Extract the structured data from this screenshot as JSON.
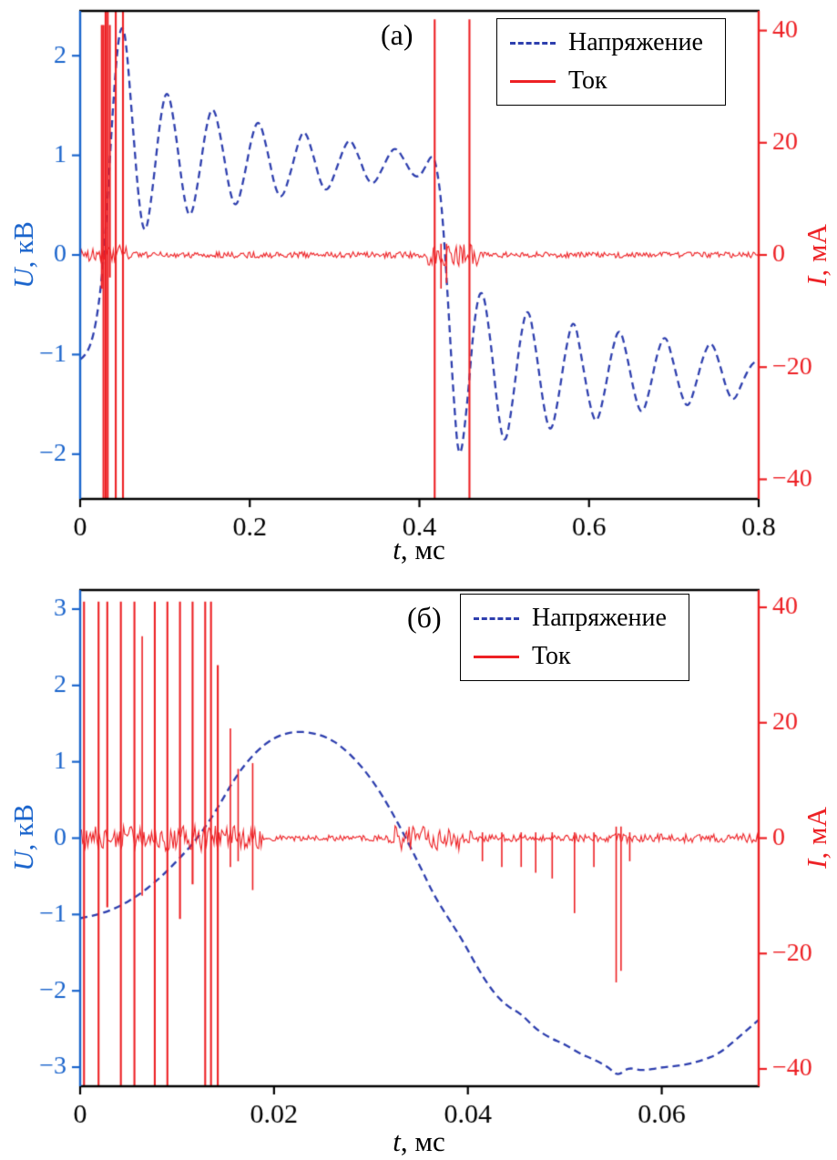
{
  "figure": {
    "background": "#ffffff"
  },
  "chart_data": [
    {
      "id": "a",
      "type": "line",
      "panel_label": "(а)",
      "x_axis": {
        "label_symbol": "t",
        "label_rest": ", мс",
        "color": "#000000",
        "lim": [
          0,
          0.8
        ],
        "tick_values": [
          0,
          0.2,
          0.4,
          0.6,
          0.8
        ],
        "tick_labels": [
          "0",
          "0.2",
          "0.4",
          "0.6",
          "0.8"
        ]
      },
      "left_axis": {
        "label_symbol": "U",
        "label_rest": ", кВ",
        "color": "#1a64cc",
        "lim": [
          -2.45,
          2.45
        ],
        "tick_values": [
          -2,
          -1,
          0,
          1,
          2
        ],
        "tick_labels": [
          "−2",
          "−1",
          "0",
          "1",
          "2"
        ]
      },
      "right_axis": {
        "label_symbol": "I",
        "label_rest": ", мА",
        "color": "#ed2024",
        "lim": [
          -43.5,
          43.5
        ],
        "tick_values": [
          -40,
          -20,
          0,
          20,
          40
        ],
        "tick_labels": [
          "−40",
          "−20",
          "0",
          "20",
          "40"
        ]
      },
      "legend": [
        {
          "label": "Напряжение",
          "line": "dashed",
          "color": "#2e3fae"
        },
        {
          "label": "Ток",
          "line": "solid",
          "color": "#ed2024"
        }
      ],
      "series": [
        {
          "name": "Напряжение",
          "axis": "left",
          "style": "dashed",
          "color": "#2e3fae",
          "points": [
            [
              0,
              -1.05
            ],
            [
              0.008,
              -1.0
            ],
            [
              0.016,
              -0.8
            ],
            [
              0.022,
              -0.5
            ],
            [
              0.027,
              -0.1
            ],
            [
              0.032,
              0.5
            ],
            [
              0.038,
              1.4
            ],
            [
              0.044,
              2.1
            ],
            [
              0.049,
              2.32
            ],
            [
              0.054,
              2.18
            ],
            [
              0.062,
              1.3
            ],
            [
              0.07,
              0.45
            ],
            [
              0.077,
              0.17
            ],
            [
              0.085,
              0.62
            ],
            [
              0.095,
              1.42
            ],
            [
              0.103,
              1.7
            ],
            [
              0.112,
              1.28
            ],
            [
              0.122,
              0.58
            ],
            [
              0.13,
              0.33
            ],
            [
              0.139,
              0.72
            ],
            [
              0.149,
              1.32
            ],
            [
              0.157,
              1.52
            ],
            [
              0.166,
              1.18
            ],
            [
              0.176,
              0.64
            ],
            [
              0.184,
              0.45
            ],
            [
              0.193,
              0.76
            ],
            [
              0.203,
              1.22
            ],
            [
              0.211,
              1.38
            ],
            [
              0.221,
              1.04
            ],
            [
              0.23,
              0.66
            ],
            [
              0.238,
              0.55
            ],
            [
              0.248,
              0.82
            ],
            [
              0.258,
              1.16
            ],
            [
              0.265,
              1.27
            ],
            [
              0.275,
              1.0
            ],
            [
              0.284,
              0.7
            ],
            [
              0.292,
              0.63
            ],
            [
              0.302,
              0.86
            ],
            [
              0.312,
              1.1
            ],
            [
              0.319,
              1.17
            ],
            [
              0.329,
              0.98
            ],
            [
              0.338,
              0.76
            ],
            [
              0.346,
              0.7
            ],
            [
              0.356,
              0.86
            ],
            [
              0.366,
              1.04
            ],
            [
              0.373,
              1.08
            ],
            [
              0.383,
              0.94
            ],
            [
              0.392,
              0.8
            ],
            [
              0.4,
              0.78
            ],
            [
              0.408,
              0.9
            ],
            [
              0.414,
              1.0
            ],
            [
              0.419,
              0.95
            ],
            [
              0.426,
              0.55
            ],
            [
              0.433,
              -0.35
            ],
            [
              0.44,
              -1.4
            ],
            [
              0.447,
              -2.15
            ],
            [
              0.456,
              -1.55
            ],
            [
              0.465,
              -0.6
            ],
            [
              0.474,
              -0.28
            ],
            [
              0.484,
              -0.85
            ],
            [
              0.493,
              -1.62
            ],
            [
              0.501,
              -1.95
            ],
            [
              0.51,
              -1.48
            ],
            [
              0.519,
              -0.82
            ],
            [
              0.528,
              -0.48
            ],
            [
              0.537,
              -0.92
            ],
            [
              0.547,
              -1.56
            ],
            [
              0.555,
              -1.82
            ],
            [
              0.564,
              -1.44
            ],
            [
              0.573,
              -0.92
            ],
            [
              0.582,
              -0.6
            ],
            [
              0.591,
              -1.02
            ],
            [
              0.601,
              -1.52
            ],
            [
              0.609,
              -1.72
            ],
            [
              0.618,
              -1.4
            ],
            [
              0.627,
              -0.96
            ],
            [
              0.636,
              -0.7
            ],
            [
              0.645,
              -1.02
            ],
            [
              0.655,
              -1.46
            ],
            [
              0.663,
              -1.62
            ],
            [
              0.672,
              -1.34
            ],
            [
              0.681,
              -0.96
            ],
            [
              0.69,
              -0.78
            ],
            [
              0.699,
              -1.06
            ],
            [
              0.709,
              -1.42
            ],
            [
              0.717,
              -1.55
            ],
            [
              0.726,
              -1.3
            ],
            [
              0.735,
              -1.0
            ],
            [
              0.744,
              -0.85
            ],
            [
              0.753,
              -1.06
            ],
            [
              0.763,
              -1.38
            ],
            [
              0.771,
              -1.48
            ],
            [
              0.781,
              -1.27
            ],
            [
              0.791,
              -1.1
            ],
            [
              0.8,
              -1.05
            ]
          ]
        },
        {
          "name": "Ток",
          "axis": "right",
          "style": "solid",
          "color": "#ed2024",
          "baseline": 0,
          "noise": [
            {
              "t0": 0,
              "t1": 0.024,
              "amp": 1.2
            },
            {
              "t0": 0.024,
              "t1": 0.058,
              "amp": 2.0
            },
            {
              "t0": 0.058,
              "t1": 0.41,
              "amp": 0.55
            },
            {
              "t0": 0.41,
              "t1": 0.47,
              "amp": 2.0
            },
            {
              "t0": 0.47,
              "t1": 0.8,
              "amp": 0.5
            }
          ],
          "spikes": [
            {
              "t": 0.0255,
              "lo": -6,
              "hi": 41
            },
            {
              "t": 0.0275,
              "lo": -45,
              "hi": 41
            },
            {
              "t": 0.03,
              "lo": -45,
              "hi": 45
            },
            {
              "t": 0.0325,
              "lo": -45,
              "hi": 45
            },
            {
              "t": 0.035,
              "lo": -4,
              "hi": 41
            },
            {
              "t": 0.042,
              "lo": -45,
              "hi": 45
            },
            {
              "t": 0.0505,
              "lo": -45,
              "hi": 45
            },
            {
              "t": 0.418,
              "lo": -45,
              "hi": 42
            },
            {
              "t": 0.4255,
              "lo": -6,
              "hi": 2
            },
            {
              "t": 0.432,
              "lo": -5,
              "hi": 2
            },
            {
              "t": 0.459,
              "lo": -45,
              "hi": 42
            }
          ]
        }
      ]
    },
    {
      "id": "b",
      "type": "line",
      "panel_label": "(б)",
      "x_axis": {
        "label_symbol": "t",
        "label_rest": ", мс",
        "color": "#000000",
        "lim": [
          0,
          0.07
        ],
        "tick_values": [
          0,
          0.02,
          0.04,
          0.06
        ],
        "tick_labels": [
          "0",
          "0.02",
          "0.04",
          "0.06"
        ]
      },
      "left_axis": {
        "label_symbol": "U",
        "label_rest": ", кВ",
        "color": "#1a64cc",
        "lim": [
          -3.25,
          3.25
        ],
        "tick_values": [
          -3,
          -2,
          -1,
          0,
          1,
          2,
          3
        ],
        "tick_labels": [
          "−3",
          "−2",
          "−1",
          "0",
          "1",
          "2",
          "3"
        ]
      },
      "right_axis": {
        "label_symbol": "I",
        "label_rest": ", мА",
        "color": "#ed2024",
        "lim": [
          -43,
          43
        ],
        "tick_values": [
          -40,
          -20,
          0,
          20,
          40
        ],
        "tick_labels": [
          "−40",
          "−20",
          "0",
          "20",
          "40"
        ]
      },
      "legend": [
        {
          "label": "Напряжение",
          "line": "dashed",
          "color": "#2e3fae"
        },
        {
          "label": "Ток",
          "line": "solid",
          "color": "#ed2024"
        }
      ],
      "series": [
        {
          "name": "Напряжение",
          "axis": "left",
          "style": "dashed",
          "color": "#2e3fae",
          "points": [
            [
              0,
              -1.05
            ],
            [
              0.002,
              -1.0
            ],
            [
              0.004,
              -0.9
            ],
            [
              0.006,
              -0.75
            ],
            [
              0.008,
              -0.55
            ],
            [
              0.01,
              -0.3
            ],
            [
              0.012,
              -0.02
            ],
            [
              0.014,
              0.35
            ],
            [
              0.016,
              0.8
            ],
            [
              0.018,
              1.12
            ],
            [
              0.02,
              1.32
            ],
            [
              0.022,
              1.4
            ],
            [
              0.024,
              1.38
            ],
            [
              0.0255,
              1.32
            ],
            [
              0.027,
              1.2
            ],
            [
              0.029,
              0.95
            ],
            [
              0.031,
              0.6
            ],
            [
              0.033,
              0.15
            ],
            [
              0.035,
              -0.35
            ],
            [
              0.0365,
              -0.75
            ],
            [
              0.038,
              -1.05
            ],
            [
              0.0395,
              -1.35
            ],
            [
              0.041,
              -1.7
            ],
            [
              0.0425,
              -2.0
            ],
            [
              0.044,
              -2.2
            ],
            [
              0.0455,
              -2.3
            ],
            [
              0.047,
              -2.5
            ],
            [
              0.0485,
              -2.62
            ],
            [
              0.05,
              -2.7
            ],
            [
              0.0515,
              -2.82
            ],
            [
              0.053,
              -2.9
            ],
            [
              0.0545,
              -3.0
            ],
            [
              0.0555,
              -3.12
            ],
            [
              0.0565,
              -3.0
            ],
            [
              0.058,
              -3.05
            ],
            [
              0.06,
              -3.0
            ],
            [
              0.062,
              -2.98
            ],
            [
              0.064,
              -2.92
            ],
            [
              0.066,
              -2.82
            ],
            [
              0.068,
              -2.6
            ],
            [
              0.07,
              -2.38
            ]
          ]
        },
        {
          "name": "Ток",
          "axis": "right",
          "style": "solid",
          "color": "#ed2024",
          "baseline": 0,
          "noise": [
            {
              "t0": 0,
              "t1": 0.019,
              "amp": 2.2
            },
            {
              "t0": 0.019,
              "t1": 0.0315,
              "amp": 0.5
            },
            {
              "t0": 0.0315,
              "t1": 0.0405,
              "amp": 2.2
            },
            {
              "t0": 0.0405,
              "t1": 0.055,
              "amp": 0.6
            },
            {
              "t0": 0.055,
              "t1": 0.07,
              "amp": 0.8
            }
          ],
          "spikes": [
            {
              "t": 0.0004,
              "lo": -45,
              "hi": 41
            },
            {
              "t": 0.0019,
              "lo": -45,
              "hi": 41
            },
            {
              "t": 0.0028,
              "lo": -12,
              "hi": 41
            },
            {
              "t": 0.0042,
              "lo": -45,
              "hi": 41
            },
            {
              "t": 0.0056,
              "lo": -45,
              "hi": 41
            },
            {
              "t": 0.0064,
              "lo": -10,
              "hi": 35
            },
            {
              "t": 0.0077,
              "lo": -45,
              "hi": 41
            },
            {
              "t": 0.009,
              "lo": -45,
              "hi": 41
            },
            {
              "t": 0.0103,
              "lo": -14,
              "hi": 41
            },
            {
              "t": 0.0116,
              "lo": -8,
              "hi": 41
            },
            {
              "t": 0.0129,
              "lo": -45,
              "hi": 41
            },
            {
              "t": 0.0135,
              "lo": -45,
              "hi": 41
            },
            {
              "t": 0.0142,
              "lo": -45,
              "hi": 30
            },
            {
              "t": 0.0155,
              "lo": -5,
              "hi": 19
            },
            {
              "t": 0.0163,
              "lo": -4,
              "hi": 12
            },
            {
              "t": 0.0178,
              "lo": -9,
              "hi": 13
            },
            {
              "t": 0.0415,
              "lo": -4,
              "hi": 1
            },
            {
              "t": 0.0435,
              "lo": -5,
              "hi": 1
            },
            {
              "t": 0.0455,
              "lo": -5,
              "hi": 1
            },
            {
              "t": 0.047,
              "lo": -6,
              "hi": 1
            },
            {
              "t": 0.0487,
              "lo": -7,
              "hi": 1
            },
            {
              "t": 0.051,
              "lo": -13,
              "hi": 1
            },
            {
              "t": 0.053,
              "lo": -5,
              "hi": 1
            },
            {
              "t": 0.0553,
              "lo": -25,
              "hi": 2
            },
            {
              "t": 0.0558,
              "lo": -23,
              "hi": 2
            },
            {
              "t": 0.0567,
              "lo": -4,
              "hi": 1
            }
          ]
        }
      ]
    }
  ]
}
